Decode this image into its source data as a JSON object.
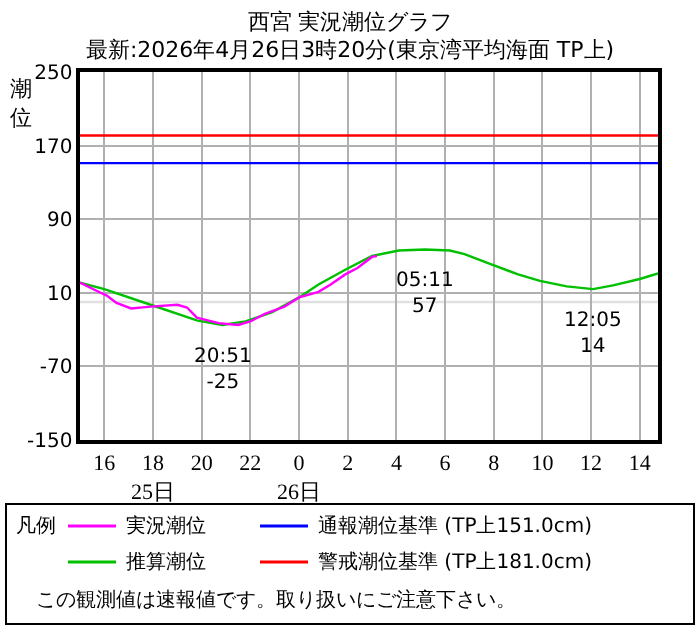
{
  "chart_data": {
    "type": "line",
    "title": "西宮 実況潮位グラフ",
    "subtitle": "最新:2026年4月26日3時20分(東京湾平均海面 TP上)",
    "ylabel": "潮位",
    "legend_title": "凡例",
    "series": [
      {
        "name": "実況潮位",
        "color": "#ff00ff",
        "x": [
          "2026-04-25T15:00",
          "2026-04-25T15:42",
          "2026-04-25T16:06",
          "2026-04-25T16:30",
          "2026-04-25T17:06",
          "2026-04-25T17:54",
          "2026-04-25T19:00",
          "2026-04-25T19:24",
          "2026-04-25T19:48",
          "2026-04-25T20:42",
          "2026-04-25T21:30",
          "2026-04-25T22:00",
          "2026-04-25T22:36",
          "2026-04-25T23:24",
          "2026-04-26T00:00",
          "2026-04-26T00:48",
          "2026-04-26T01:18",
          "2026-04-26T01:54",
          "2026-04-26T02:24",
          "2026-04-26T03:00",
          "2026-04-26T03:12"
        ],
        "values": [
          21,
          12,
          7,
          -1,
          -7,
          -5,
          -3,
          -6,
          -17,
          -23,
          -25,
          -21,
          -13,
          -5,
          5,
          11,
          19,
          30,
          37,
          49,
          50
        ]
      },
      {
        "name": "推算潮位",
        "color": "#00c000",
        "x": [
          "2026-04-25T15:00",
          "2026-04-25T16:00",
          "2026-04-25T17:54",
          "2026-04-25T19:48",
          "2026-04-25T20:51",
          "2026-04-25T21:48",
          "2026-04-25T22:54",
          "2026-04-26T00:00",
          "2026-04-26T00:48",
          "2026-04-26T01:54",
          "2026-04-26T03:00",
          "2026-04-26T04:06",
          "2026-04-26T05:11",
          "2026-04-26T06:12",
          "2026-04-26T06:48",
          "2026-04-26T07:54",
          "2026-04-26T09:00",
          "2026-04-26T09:54",
          "2026-04-26T11:00",
          "2026-04-26T12:05",
          "2026-04-26T12:54",
          "2026-04-26T14:00",
          "2026-04-26T14:45"
        ],
        "values": [
          21,
          14,
          -3,
          -20,
          -25,
          -21,
          -11,
          5,
          19,
          35,
          50,
          56,
          57,
          56,
          52,
          41,
          30,
          23,
          17,
          14,
          18,
          25,
          31
        ]
      }
    ],
    "xlim": [
      "2026-04-25T15:00",
      "2026-04-26T14:45"
    ],
    "xticks": [
      {
        "value": "2026-04-25T16:00",
        "label": "16"
      },
      {
        "value": "2026-04-25T18:00",
        "label": "18\n25日"
      },
      {
        "value": "2026-04-25T20:00",
        "label": "20"
      },
      {
        "value": "2026-04-25T22:00",
        "label": "22"
      },
      {
        "value": "2026-04-26T00:00",
        "label": "0\n26日"
      },
      {
        "value": "2026-04-26T02:00",
        "label": "2"
      },
      {
        "value": "2026-04-26T04:00",
        "label": "4"
      },
      {
        "value": "2026-04-26T06:00",
        "label": "6"
      },
      {
        "value": "2026-04-26T08:00",
        "label": "8"
      },
      {
        "value": "2026-04-26T10:00",
        "label": "10"
      },
      {
        "value": "2026-04-26T12:00",
        "label": "12"
      },
      {
        "value": "2026-04-26T14:00",
        "label": "14"
      }
    ],
    "ylim": [
      -150,
      250
    ],
    "yticks": [
      -150,
      -70,
      10,
      90,
      170,
      250
    ],
    "ref_lines": [
      {
        "axis": "y",
        "value": 151,
        "label": "通報潮位基準 (TP上151.0cm)",
        "color": "#0000ff"
      },
      {
        "axis": "y",
        "value": 181,
        "label": "警戒潮位基準 (TP上181.0cm)",
        "color": "#ff0000"
      },
      {
        "axis": "y",
        "value": 0,
        "color": "#e0e0e0"
      }
    ],
    "annotations": [
      {
        "text": "20:51\n-25",
        "x": "2026-04-25T20:51",
        "y": -25
      },
      {
        "text": "05:11\n57",
        "x": "2026-04-26T05:11",
        "y": 57
      },
      {
        "text": "12:05\n14",
        "x": "2026-04-26T12:05",
        "y": 14
      },
      "この観測値は速報値です。取り扱いにご注意下さい。"
    ],
    "grid": true,
    "legend": "bottom",
    "marker": "none",
    "line_style": "solid"
  }
}
